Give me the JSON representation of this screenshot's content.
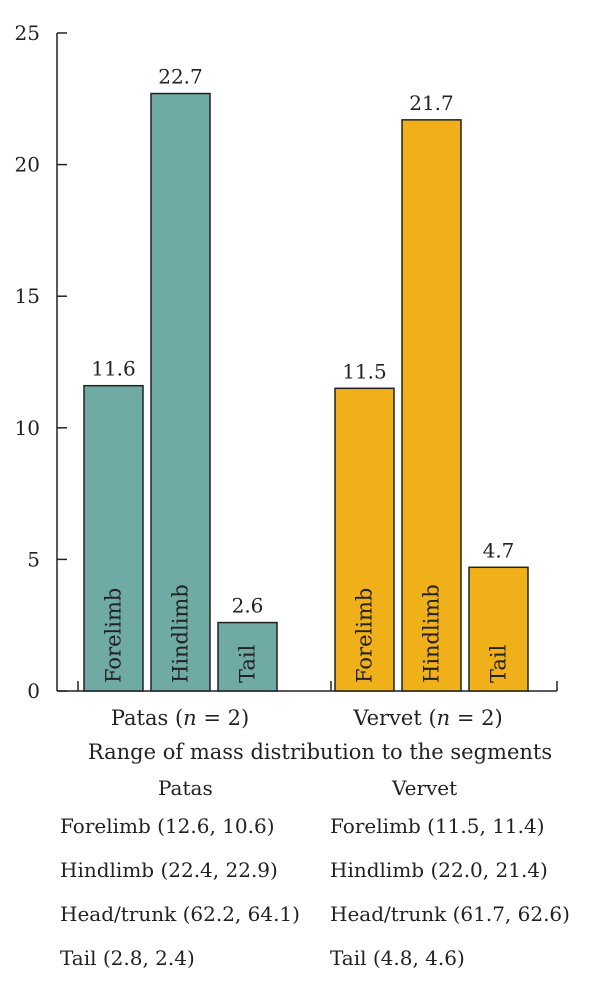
{
  "chart_data": {
    "type": "bar",
    "ylim": [
      0,
      25
    ],
    "yticks": [
      0,
      5,
      10,
      15,
      20,
      25
    ],
    "grid": false,
    "groups": [
      {
        "name": "Patas (n = 2)",
        "label_prefix": "Patas (",
        "label_n": "n",
        "label_suffix": " = 2)",
        "color": "#6faaa5",
        "bars": [
          {
            "label": "Forelimb",
            "value": 11.6,
            "value_text": "11.6"
          },
          {
            "label": "Hindlimb",
            "value": 22.7,
            "value_text": "22.7"
          },
          {
            "label": "Tail",
            "value": 2.6,
            "value_text": "2.6"
          }
        ]
      },
      {
        "name": "Vervet (n = 2)",
        "label_prefix": "Vervet (",
        "label_n": "n",
        "label_suffix": " = 2)",
        "color": "#f0b01a",
        "bars": [
          {
            "label": "Forelimb",
            "value": 11.5,
            "value_text": "11.5"
          },
          {
            "label": "Hindlimb",
            "value": 21.7,
            "value_text": "21.7"
          },
          {
            "label": "Tail",
            "value": 4.7,
            "value_text": "4.7"
          }
        ]
      }
    ]
  },
  "ranges": {
    "title": "Range of mass distribution to the segments",
    "patas": {
      "heading": "Patas",
      "rows": [
        "Forelimb (12.6, 10.6)",
        "Hindlimb (22.4, 22.9)",
        "Head/trunk (62.2, 64.1)",
        "Tail (2.8, 2.4)"
      ]
    },
    "vervet": {
      "heading": "Vervet",
      "rows": [
        "Forelimb (11.5, 11.4)",
        "Hindlimb (22.0, 21.4)",
        "Head/trunk (61.7, 62.6)",
        "Tail (4.8, 4.6)"
      ]
    }
  }
}
